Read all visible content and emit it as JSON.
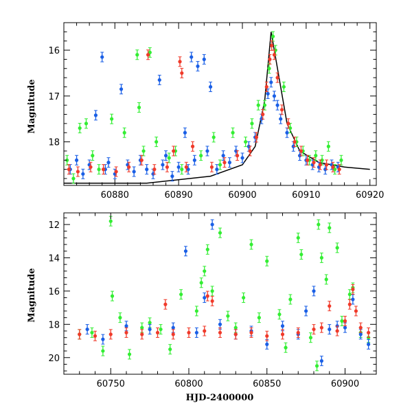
{
  "colors": {
    "green": "#33ee33",
    "blue": "#1a5fe6",
    "red": "#f03a2a",
    "model": "#000000"
  },
  "chart_data": [
    {
      "type": "scatter",
      "title": "",
      "xlabel": "",
      "ylabel": "Magnitude",
      "xlim": [
        60872,
        60921
      ],
      "ylim": [
        18.95,
        15.4
      ],
      "y_inverted": true,
      "xticks": [
        60880,
        60890,
        60900,
        60910,
        60920
      ],
      "yticks": [
        16,
        17,
        18
      ],
      "series": [
        {
          "color_key": "blue",
          "points": [
            [
              60873,
              18.6
            ],
            [
              60874,
              18.4
            ],
            [
              60875,
              18.7
            ],
            [
              60876,
              18.5
            ],
            [
              60877,
              17.42
            ],
            [
              60878,
              16.15
            ],
            [
              60878.5,
              18.6
            ],
            [
              60879,
              18.45
            ],
            [
              60880,
              18.7
            ],
            [
              60881,
              16.85
            ],
            [
              60882,
              18.5
            ],
            [
              60883,
              18.65
            ],
            [
              60884,
              18.4
            ],
            [
              60885,
              18.6
            ],
            [
              60886,
              18.7
            ],
            [
              60887,
              16.65
            ],
            [
              60887.5,
              18.5
            ],
            [
              60888,
              18.3
            ],
            [
              60889,
              18.75
            ],
            [
              60890,
              18.55
            ],
            [
              60891,
              17.8
            ],
            [
              60891.5,
              18.6
            ],
            [
              60892,
              16.15
            ],
            [
              60892.5,
              18.4
            ],
            [
              60893,
              16.35
            ],
            [
              60894,
              16.2
            ],
            [
              60894.5,
              18.2
            ],
            [
              60895,
              16.8
            ],
            [
              60896,
              18.6
            ],
            [
              60897,
              18.3
            ],
            [
              60898,
              18.45
            ],
            [
              60899,
              18.2
            ],
            [
              60900,
              18.35
            ],
            [
              60901,
              18.1
            ],
            [
              60902,
              17.9
            ],
            [
              60903,
              17.5
            ],
            [
              60904,
              16.95
            ],
            [
              60904.5,
              16.7
            ],
            [
              60905,
              17.0
            ],
            [
              60905.5,
              17.2
            ],
            [
              60906,
              17.5
            ],
            [
              60907,
              17.8
            ],
            [
              60908,
              18.1
            ],
            [
              60909,
              18.3
            ],
            [
              60910,
              18.4
            ],
            [
              60911,
              18.5
            ],
            [
              60912,
              18.55
            ],
            [
              60913,
              18.6
            ],
            [
              60914,
              18.5
            ],
            [
              60915,
              18.55
            ]
          ]
        },
        {
          "color_key": "green",
          "points": [
            [
              60872.5,
              18.4
            ],
            [
              60873.5,
              18.8
            ],
            [
              60874.5,
              17.7
            ],
            [
              60875.5,
              17.6
            ],
            [
              60876.5,
              18.3
            ],
            [
              60877.5,
              18.6
            ],
            [
              60879.5,
              17.5
            ],
            [
              60881.5,
              17.8
            ],
            [
              60883.5,
              16.1
            ],
            [
              60883.8,
              17.25
            ],
            [
              60884.5,
              18.2
            ],
            [
              60885.5,
              16.05
            ],
            [
              60886.5,
              18.0
            ],
            [
              60888.5,
              18.35
            ],
            [
              60889.5,
              18.2
            ],
            [
              60890.5,
              18.6
            ],
            [
              60893.5,
              18.3
            ],
            [
              60895.5,
              17.9
            ],
            [
              60896.5,
              18.5
            ],
            [
              60898.5,
              17.8
            ],
            [
              60900.5,
              18.0
            ],
            [
              60901.5,
              17.6
            ],
            [
              60902.5,
              17.2
            ],
            [
              60903.5,
              17.2
            ],
            [
              60904.2,
              16.4
            ],
            [
              60904.8,
              15.7
            ],
            [
              60905.2,
              16.0
            ],
            [
              60906.5,
              16.8
            ],
            [
              60907.5,
              17.7
            ],
            [
              60908.5,
              18.0
            ],
            [
              60909.5,
              18.2
            ],
            [
              60910.5,
              18.4
            ],
            [
              60911.5,
              18.3
            ],
            [
              60912.5,
              18.4
            ],
            [
              60913.5,
              18.1
            ],
            [
              60914.5,
              18.6
            ],
            [
              60915.5,
              18.4
            ]
          ]
        },
        {
          "color_key": "red",
          "points": [
            [
              60872.8,
              18.6
            ],
            [
              60874.2,
              18.65
            ],
            [
              60876.2,
              18.55
            ],
            [
              60878.2,
              18.6
            ],
            [
              60880.2,
              18.65
            ],
            [
              60882.2,
              18.55
            ],
            [
              60884.2,
              18.4
            ],
            [
              60885.2,
              16.1
            ],
            [
              60886.2,
              18.6
            ],
            [
              60888.2,
              18.55
            ],
            [
              60889.2,
              18.2
            ],
            [
              60890.2,
              16.25
            ],
            [
              60890.5,
              16.5
            ],
            [
              60891.2,
              18.55
            ],
            [
              60892.2,
              18.1
            ],
            [
              60895.2,
              18.55
            ],
            [
              60897.2,
              18.45
            ],
            [
              60899.2,
              18.3
            ],
            [
              60901.2,
              18.2
            ],
            [
              60902.2,
              17.9
            ],
            [
              60903.2,
              17.4
            ],
            [
              60903.8,
              16.8
            ],
            [
              60904.3,
              16.2
            ],
            [
              60904.6,
              15.9
            ],
            [
              60905.0,
              16.1
            ],
            [
              60905.5,
              16.6
            ],
            [
              60906.2,
              17.3
            ],
            [
              60907.2,
              17.6
            ],
            [
              60908.2,
              18.0
            ],
            [
              60909.2,
              18.2
            ],
            [
              60910.2,
              18.4
            ],
            [
              60911.2,
              18.45
            ],
            [
              60912.2,
              18.5
            ],
            [
              60913.2,
              18.5
            ],
            [
              60914.2,
              18.55
            ],
            [
              60915.2,
              18.6
            ]
          ]
        }
      ],
      "model_curve": [
        [
          60872,
          18.9
        ],
        [
          60885,
          18.9
        ],
        [
          60895,
          18.75
        ],
        [
          60900,
          18.5
        ],
        [
          60902,
          18.1
        ],
        [
          60903.5,
          17.1
        ],
        [
          60904.5,
          15.6
        ],
        [
          60905.5,
          16.4
        ],
        [
          60907,
          17.6
        ],
        [
          60909,
          18.2
        ],
        [
          60912,
          18.45
        ],
        [
          60916,
          18.55
        ],
        [
          60920,
          18.6
        ]
      ]
    },
    {
      "type": "scatter",
      "title": "",
      "xlabel": "HJD-2400000",
      "ylabel": "Magnitude",
      "xlim": [
        60720,
        60920
      ],
      "ylim": [
        21,
        11.3
      ],
      "y_inverted": true,
      "xticks": [
        60750,
        60800,
        60850,
        60900
      ],
      "yticks": [
        12,
        14,
        16,
        18,
        20
      ],
      "series": [
        {
          "color_key": "green",
          "points": [
            [
              60730,
              18.6
            ],
            [
              60738,
              18.5
            ],
            [
              60745,
              19.6
            ],
            [
              60750,
              11.8
            ],
            [
              60751,
              16.3
            ],
            [
              60756,
              17.6
            ],
            [
              60762,
              19.8
            ],
            [
              60770,
              18.2
            ],
            [
              60775,
              17.9
            ],
            [
              60782,
              18.3
            ],
            [
              60788,
              19.5
            ],
            [
              60795,
              16.2
            ],
            [
              60805,
              17.2
            ],
            [
              60808,
              15.5
            ],
            [
              60810,
              14.8
            ],
            [
              60812,
              13.5
            ],
            [
              60815,
              16.0
            ],
            [
              60820,
              12.5
            ],
            [
              60825,
              17.5
            ],
            [
              60830,
              18.2
            ],
            [
              60835,
              16.4
            ],
            [
              60840,
              13.2
            ],
            [
              60845,
              17.6
            ],
            [
              60850,
              14.2
            ],
            [
              60858,
              17.4
            ],
            [
              60862,
              19.4
            ],
            [
              60865,
              16.5
            ],
            [
              60870,
              12.8
            ],
            [
              60872,
              13.8
            ],
            [
              60878,
              18.8
            ],
            [
              60882,
              20.5
            ],
            [
              60883,
              12.0
            ],
            [
              60885,
              14.0
            ],
            [
              60888,
              15.3
            ],
            [
              60890,
              12.2
            ],
            [
              60895,
              13.4
            ],
            [
              60898,
              17.8
            ],
            [
              60903,
              16.2
            ],
            [
              60905,
              15.8
            ],
            [
              60910,
              18.5
            ],
            [
              60915,
              18.8
            ]
          ]
        },
        {
          "color_key": "blue",
          "points": [
            [
              60735,
              18.3
            ],
            [
              60745,
              18.9
            ],
            [
              60760,
              18.1
            ],
            [
              60775,
              18.3
            ],
            [
              60790,
              18.2
            ],
            [
              60798,
              13.6
            ],
            [
              60805,
              18.5
            ],
            [
              60810,
              16.4
            ],
            [
              60815,
              12.0
            ],
            [
              60820,
              18.0
            ],
            [
              60830,
              18.6
            ],
            [
              60840,
              18.4
            ],
            [
              60850,
              19.2
            ],
            [
              60860,
              18.1
            ],
            [
              60870,
              18.6
            ],
            [
              60875,
              17.2
            ],
            [
              60880,
              16.0
            ],
            [
              60885,
              20.2
            ],
            [
              60890,
              18.3
            ],
            [
              60895,
              18.1
            ],
            [
              60900,
              18.2
            ],
            [
              60905,
              16.5
            ],
            [
              60910,
              18.6
            ],
            [
              60915,
              19.2
            ]
          ]
        },
        {
          "color_key": "red",
          "points": [
            [
              60730,
              18.6
            ],
            [
              60740,
              18.7
            ],
            [
              60750,
              18.6
            ],
            [
              60760,
              18.5
            ],
            [
              60770,
              18.6
            ],
            [
              60780,
              18.5
            ],
            [
              60785,
              16.8
            ],
            [
              60790,
              18.6
            ],
            [
              60800,
              18.5
            ],
            [
              60810,
              18.4
            ],
            [
              60812,
              16.3
            ],
            [
              60815,
              16.6
            ],
            [
              60820,
              18.5
            ],
            [
              60830,
              18.6
            ],
            [
              60840,
              18.5
            ],
            [
              60850,
              18.7
            ],
            [
              60860,
              18.6
            ],
            [
              60870,
              18.5
            ],
            [
              60880,
              18.3
            ],
            [
              60885,
              18.2
            ],
            [
              60890,
              16.9
            ],
            [
              60895,
              18.4
            ],
            [
              60900,
              17.8
            ],
            [
              60903,
              16.8
            ],
            [
              60905,
              15.9
            ],
            [
              60907,
              17.2
            ],
            [
              60910,
              18.2
            ],
            [
              60915,
              18.5
            ]
          ]
        }
      ]
    }
  ]
}
